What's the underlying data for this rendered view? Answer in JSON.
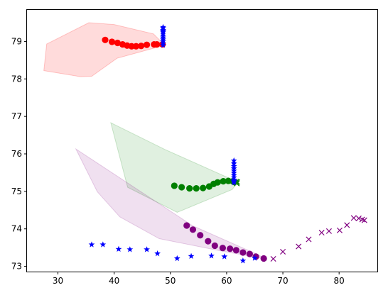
{
  "chart_data": {
    "type": "scatter",
    "title": "",
    "xlabel": "",
    "ylabel": "",
    "xlim": [
      24.5,
      86.8
    ],
    "ylim": [
      72.86,
      79.84
    ],
    "grid": false,
    "x_ticks": [
      30,
      40,
      50,
      60,
      70,
      80
    ],
    "y_ticks": [
      73,
      74,
      75,
      76,
      77,
      78,
      79
    ],
    "polygons": [
      {
        "color": "#ff0000",
        "opacity": 0.14,
        "points": [
          [
            27.5,
            78.22
          ],
          [
            28.0,
            78.93
          ],
          [
            35.5,
            79.5
          ],
          [
            40.0,
            79.45
          ],
          [
            47.0,
            79.2
          ],
          [
            49.0,
            78.9
          ],
          [
            40.5,
            78.55
          ],
          [
            36.0,
            78.07
          ],
          [
            34.0,
            78.06
          ]
        ]
      },
      {
        "color": "#008000",
        "opacity": 0.12,
        "points": [
          [
            39.4,
            76.83
          ],
          [
            49.0,
            76.12
          ],
          [
            62.0,
            75.25
          ],
          [
            61.0,
            75.05
          ],
          [
            51.2,
            74.44
          ],
          [
            42.4,
            75.11
          ]
        ]
      },
      {
        "color": "#800080",
        "opacity": 0.12,
        "points": [
          [
            33.2,
            76.13
          ],
          [
            37.0,
            74.99
          ],
          [
            41.0,
            74.32
          ],
          [
            48.0,
            73.74
          ],
          [
            59.0,
            73.41
          ],
          [
            67.0,
            73.2
          ],
          [
            65.0,
            73.35
          ],
          [
            54.0,
            74.08
          ]
        ]
      }
    ],
    "series": [
      {
        "marker": "circle",
        "color": "#ff0000",
        "x": [
          47.6,
          48.6,
          47.1,
          45.8,
          44.8,
          43.9,
          43.1,
          42.3,
          41.5,
          40.6,
          39.6,
          38.4
        ],
        "y": [
          78.92,
          78.92,
          78.92,
          78.91,
          78.88,
          78.87,
          78.87,
          78.89,
          78.92,
          78.96,
          78.99,
          79.04
        ]
      },
      {
        "marker": "star",
        "color": "#0000ff",
        "x": [
          48.7,
          48.7,
          48.7,
          48.7,
          48.7,
          48.7,
          48.7,
          48.7,
          48.7,
          48.7,
          48.7,
          48.7
        ],
        "y": [
          79.3,
          79.25,
          79.2,
          79.15,
          79.1,
          79.05,
          79.0,
          78.95,
          78.9,
          79.35,
          79.38,
          79.28
        ]
      },
      {
        "marker": "x",
        "color": "#008000",
        "x": [
          61.6,
          61.7,
          61.8,
          61.8,
          61.9
        ],
        "y": [
          75.24,
          75.26,
          75.22,
          75.21,
          75.25
        ]
      },
      {
        "marker": "circle",
        "color": "#008000",
        "x": [
          50.7,
          52.0,
          53.4,
          54.6,
          55.8,
          56.9,
          57.7,
          58.4,
          59.4,
          60.3,
          61.1,
          61.4
        ],
        "y": [
          75.15,
          75.11,
          75.08,
          75.08,
          75.09,
          75.13,
          75.2,
          75.24,
          75.27,
          75.28,
          75.27,
          75.25
        ]
      },
      {
        "marker": "star",
        "color": "#0000ff",
        "x": [
          61.3,
          61.3,
          61.3,
          61.3,
          61.3,
          61.3,
          61.3,
          61.3,
          61.3,
          61.3,
          61.3,
          61.3
        ],
        "y": [
          75.82,
          75.74,
          75.67,
          75.61,
          75.55,
          75.49,
          75.43,
          75.37,
          75.31,
          75.27,
          75.23,
          75.3
        ]
      },
      {
        "marker": "circle",
        "color": "purple",
        "x": [
          52.9,
          54.0,
          55.3,
          56.7,
          57.9,
          59.3,
          60.6,
          61.7,
          62.9,
          64.1,
          65.2,
          66.6
        ],
        "y": [
          74.09,
          73.98,
          73.83,
          73.67,
          73.55,
          73.49,
          73.47,
          73.43,
          73.37,
          73.33,
          73.26,
          73.21
        ]
      },
      {
        "marker": "x",
        "color": "purple",
        "x": [
          68.3,
          70.0,
          72.8,
          74.6,
          76.9,
          78.2,
          80.1,
          81.4,
          82.6,
          83.5,
          84.1,
          84.5
        ],
        "y": [
          73.2,
          73.39,
          73.53,
          73.72,
          73.9,
          73.94,
          73.96,
          74.1,
          74.29,
          74.28,
          74.25,
          74.23
        ]
      },
      {
        "marker": "star",
        "color": "#0000ff",
        "x": [
          36.0,
          38.0,
          40.8,
          42.8,
          45.8,
          47.7,
          51.2,
          53.7,
          57.3,
          59.6,
          62.9,
          65.0
        ],
        "y": [
          73.58,
          73.58,
          73.46,
          73.45,
          73.45,
          73.34,
          73.21,
          73.27,
          73.28,
          73.26,
          73.15,
          73.22
        ]
      }
    ]
  }
}
